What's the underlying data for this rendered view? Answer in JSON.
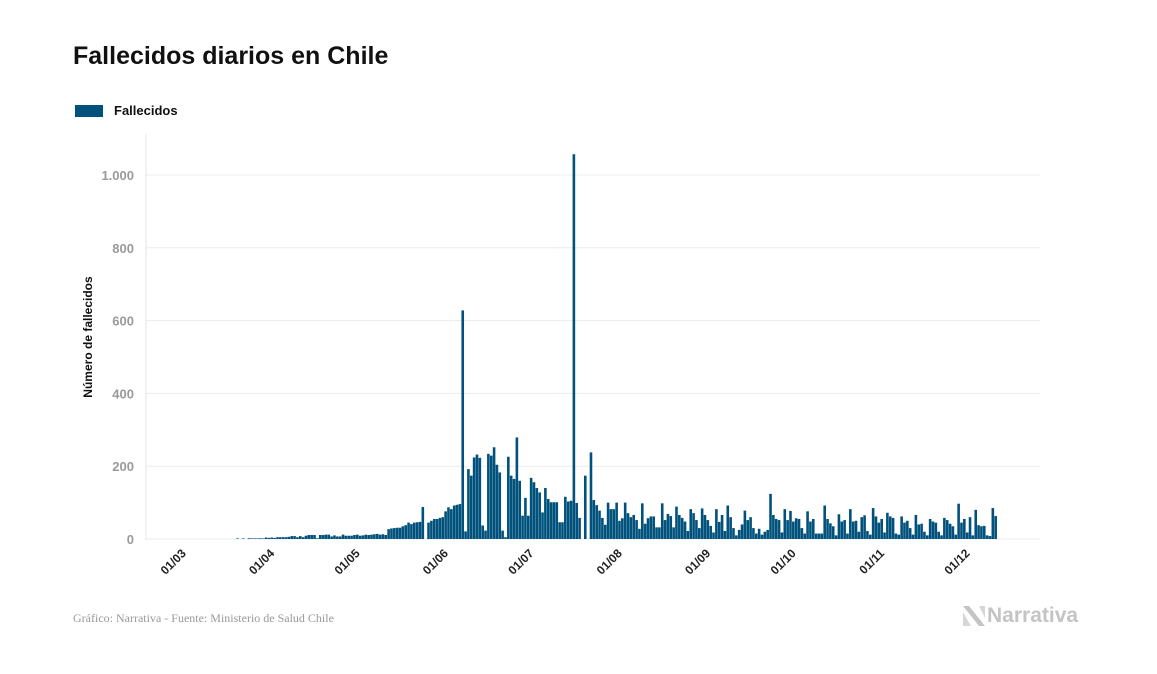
{
  "title": "Fallecidos diarios en Chile",
  "source": "Gráfico: Narrativa - Fuente: Ministerio de Salud Chile",
  "logo_text": "Narrativa",
  "chart_data": {
    "type": "bar",
    "title": "Fallecidos diarios en Chile",
    "xlabel": "",
    "ylabel": "Número de fallecidos",
    "ylim": [
      0,
      1100
    ],
    "grid": true,
    "legend_position": "top-left",
    "bar_color": "#00527c",
    "y_ticks": [
      0,
      200,
      400,
      600,
      800,
      1000
    ],
    "y_tick_labels": [
      "0",
      "200",
      "400",
      "600",
      "800",
      "1.000"
    ],
    "x_tick_labels": [
      "01/03",
      "01/04",
      "01/05",
      "01/06",
      "01/07",
      "01/08",
      "01/09",
      "01/10",
      "01/11",
      "01/12"
    ],
    "x": [
      "03/03",
      "04/03",
      "05/03",
      "06/03",
      "07/03",
      "08/03",
      "09/03",
      "10/03",
      "11/03",
      "12/03",
      "13/03",
      "14/03",
      "15/03",
      "16/03",
      "17/03",
      "18/03",
      "19/03",
      "20/03",
      "21/03",
      "22/03",
      "23/03",
      "24/03",
      "25/03",
      "26/03",
      "27/03",
      "28/03",
      "29/03",
      "30/03",
      "31/03",
      "01/04",
      "02/04",
      "03/04",
      "04/04",
      "05/04",
      "06/04",
      "07/04",
      "08/04",
      "09/04",
      "10/04",
      "11/04",
      "12/04",
      "13/04",
      "14/04",
      "15/04",
      "16/04",
      "17/04",
      "18/04",
      "19/04",
      "20/04",
      "21/04",
      "22/04",
      "23/04",
      "24/04",
      "25/04",
      "26/04",
      "27/04",
      "28/04",
      "29/04",
      "30/04",
      "01/05",
      "02/05",
      "03/05",
      "04/05",
      "05/05",
      "06/05",
      "07/05",
      "08/05",
      "09/05",
      "10/05",
      "11/05",
      "12/05",
      "13/05",
      "14/05",
      "15/05",
      "16/05",
      "17/05",
      "18/05",
      "19/05",
      "20/05",
      "21/05",
      "22/05",
      "23/05",
      "24/05",
      "25/05",
      "26/05",
      "27/05",
      "28/05",
      "29/05",
      "30/05",
      "31/05",
      "01/06",
      "02/06",
      "03/06",
      "04/06",
      "05/06",
      "06/06",
      "07/06",
      "08/06",
      "09/06",
      "10/06",
      "11/06",
      "12/06",
      "13/06",
      "14/06",
      "15/06",
      "16/06",
      "17/06",
      "18/06",
      "19/06",
      "20/06",
      "21/06",
      "22/06",
      "23/06",
      "24/06",
      "25/06",
      "26/06",
      "27/06",
      "28/06",
      "29/06",
      "30/06",
      "01/07",
      "02/07",
      "03/07",
      "04/07",
      "05/07",
      "06/07",
      "07/07",
      "08/07",
      "09/07",
      "10/07",
      "11/07",
      "12/07",
      "13/07",
      "14/07",
      "15/07",
      "16/07",
      "17/07",
      "18/07",
      "19/07",
      "20/07",
      "21/07",
      "22/07",
      "23/07",
      "24/07",
      "25/07",
      "26/07",
      "27/07",
      "28/07",
      "29/07",
      "30/07",
      "31/07",
      "01/08",
      "02/08",
      "03/08",
      "04/08",
      "05/08",
      "06/08",
      "07/08",
      "08/08",
      "09/08",
      "10/08",
      "11/08",
      "12/08",
      "13/08",
      "14/08",
      "15/08",
      "16/08",
      "17/08",
      "18/08",
      "19/08",
      "20/08",
      "21/08",
      "22/08",
      "23/08",
      "24/08",
      "25/08",
      "26/08",
      "27/08",
      "28/08",
      "29/08",
      "30/08",
      "31/08",
      "01/09",
      "02/09",
      "03/09",
      "04/09",
      "05/09",
      "06/09",
      "07/09",
      "08/09",
      "09/09",
      "10/09",
      "11/09",
      "12/09",
      "13/09",
      "14/09",
      "15/09",
      "16/09",
      "17/09",
      "18/09",
      "19/09",
      "20/09",
      "21/09",
      "22/09",
      "23/09",
      "24/09",
      "25/09",
      "26/09",
      "27/09",
      "28/09",
      "29/09",
      "30/09",
      "01/10",
      "02/10",
      "03/10",
      "04/10",
      "05/10",
      "06/10",
      "07/10",
      "08/10",
      "09/10",
      "10/10",
      "11/10",
      "12/10",
      "13/10",
      "14/10",
      "15/10",
      "16/10",
      "17/10",
      "18/10",
      "19/10",
      "20/10",
      "21/10",
      "22/10",
      "23/10",
      "24/10",
      "25/10",
      "26/10",
      "27/10",
      "28/10",
      "29/10",
      "30/10",
      "31/10",
      "01/11",
      "02/11",
      "03/11",
      "04/11",
      "05/11",
      "06/11",
      "07/11",
      "08/11",
      "09/11",
      "10/11",
      "11/11",
      "12/11",
      "13/11",
      "14/11",
      "15/11",
      "16/11",
      "17/11",
      "18/11",
      "19/11",
      "20/11",
      "21/11",
      "22/11",
      "23/11",
      "24/11",
      "25/11",
      "26/11",
      "27/11",
      "28/11",
      "29/11",
      "30/11",
      "01/12",
      "02/12",
      "03/12",
      "04/12",
      "05/12",
      "06/12",
      "07/12",
      "08/12",
      "09/12",
      "10/12",
      "11/12",
      "12/12"
    ],
    "series": [
      {
        "name": "Fallecidos",
        "values": [
          0,
          0,
          0,
          0,
          0,
          0,
          0,
          0,
          0,
          0,
          0,
          0,
          0,
          0,
          0,
          0,
          0,
          0,
          1,
          0,
          1,
          0,
          2,
          1,
          1,
          1,
          2,
          1,
          4,
          3,
          4,
          3,
          5,
          5,
          5,
          5,
          6,
          8,
          8,
          5,
          8,
          5,
          9,
          11,
          11,
          11,
          2,
          11,
          11,
          12,
          12,
          7,
          10,
          7,
          7,
          12,
          9,
          9,
          9,
          11,
          12,
          9,
          10,
          12,
          11,
          12,
          13,
          14,
          12,
          13,
          11,
          27,
          29,
          30,
          31,
          31,
          35,
          38,
          45,
          41,
          45,
          46,
          47,
          88,
          0,
          45,
          50,
          55,
          55,
          58,
          60,
          76,
          87,
          82,
          92,
          94,
          96,
          628,
          21,
          192,
          174,
          224,
          232,
          223,
          37,
          23,
          234,
          229,
          252,
          204,
          183,
          23,
          5,
          226,
          174,
          165,
          279,
          160,
          64,
          113,
          64,
          168,
          156,
          140,
          128,
          73,
          140,
          110,
          101,
          101,
          101,
          46,
          46,
          116,
          103,
          105,
          1057,
          99,
          58,
          0,
          174,
          0,
          238,
          107,
          93,
          78,
          58,
          39,
          100,
          82,
          82,
          100,
          50,
          57,
          100,
          71,
          60,
          66,
          52,
          28,
          98,
          42,
          57,
          62,
          62,
          32,
          32,
          98,
          52,
          69,
          63,
          32,
          89,
          66,
          58,
          48,
          22,
          82,
          71,
          52,
          30,
          84,
          66,
          52,
          36,
          18,
          82,
          47,
          66,
          22,
          92,
          60,
          30,
          10,
          25,
          40,
          78,
          52,
          60,
          30,
          15,
          28,
          12,
          20,
          25,
          124,
          66,
          55,
          52,
          18,
          82,
          52,
          77,
          48,
          57,
          55,
          30,
          15,
          76,
          48,
          55,
          15,
          15,
          15,
          92,
          55,
          43,
          35,
          10,
          68,
          48,
          52,
          15,
          82,
          48,
          50,
          20,
          60,
          65,
          22,
          12,
          85,
          62,
          45,
          55,
          18,
          72,
          62,
          58,
          15,
          12,
          62,
          45,
          50,
          30,
          12,
          66,
          40,
          42,
          20,
          10,
          55,
          48,
          45,
          20,
          10,
          58,
          52,
          42,
          35,
          12,
          97,
          45,
          55,
          18,
          60,
          10,
          80,
          38,
          35,
          36,
          10,
          8,
          85,
          63
        ]
      }
    ]
  }
}
